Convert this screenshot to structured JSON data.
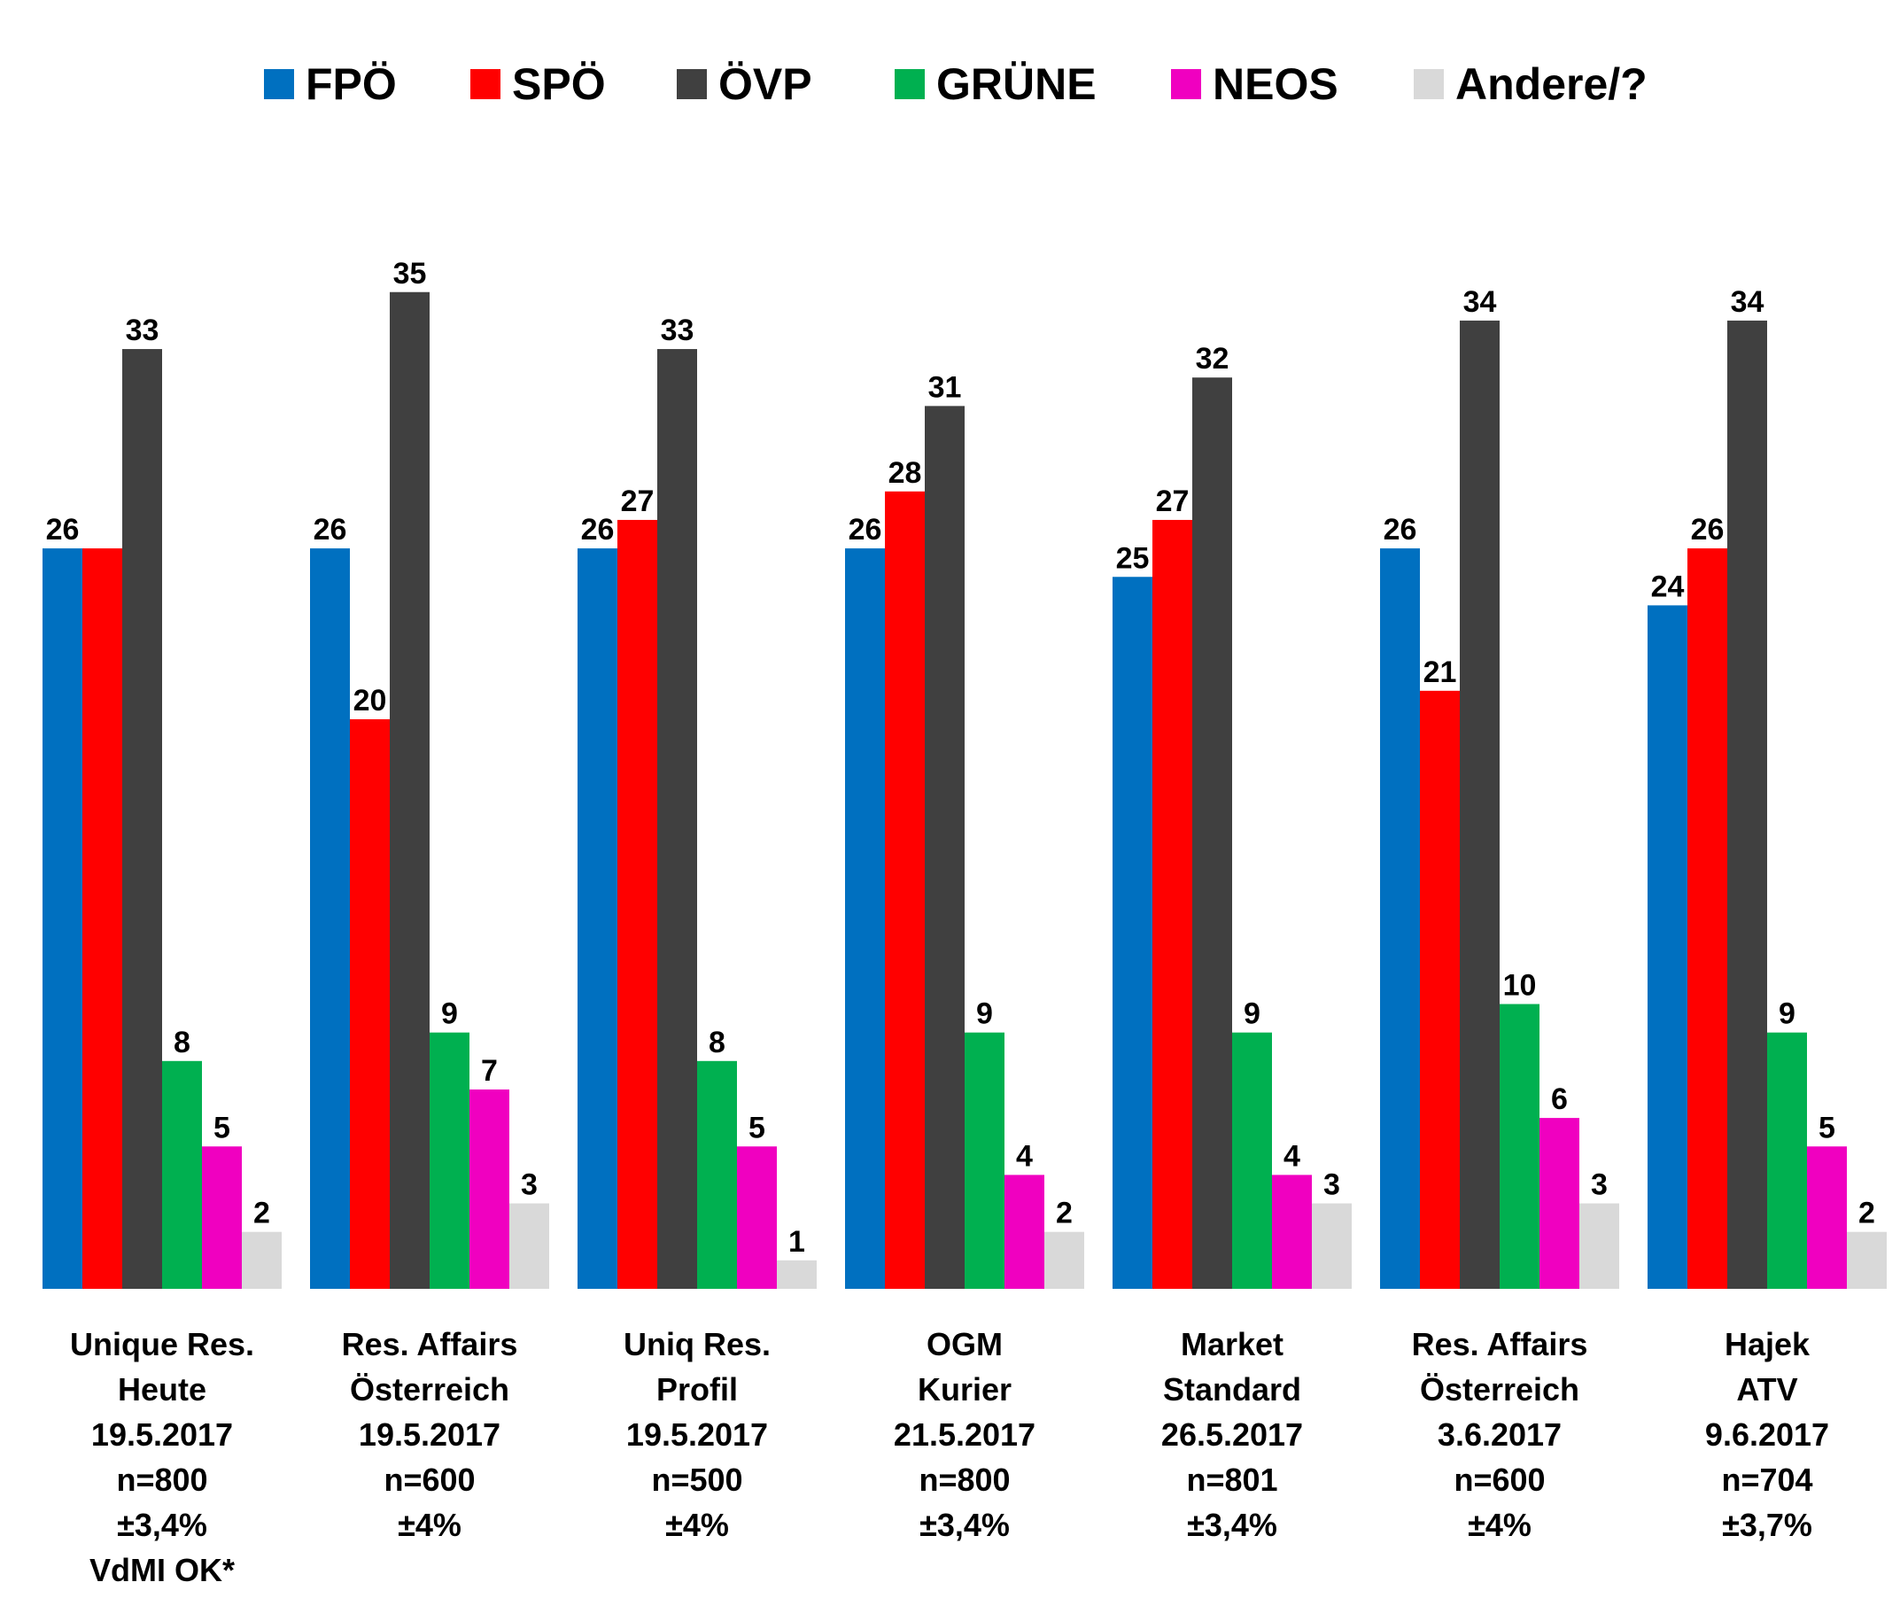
{
  "chart_data": {
    "type": "bar",
    "title": "",
    "xlabel": "",
    "ylabel": "",
    "ylim": [
      0,
      36
    ],
    "grid": false,
    "legend_position": "top",
    "series": [
      {
        "name": "FPÖ",
        "color": "#0070C0",
        "values": [
          26,
          26,
          26,
          26,
          25,
          26,
          24
        ]
      },
      {
        "name": "SPÖ",
        "color": "#FF0000",
        "values": [
          26,
          20,
          27,
          28,
          27,
          21,
          26
        ]
      },
      {
        "name": "ÖVP",
        "color": "#404040",
        "values": [
          33,
          35,
          33,
          31,
          32,
          34,
          34
        ]
      },
      {
        "name": "GRÜNE",
        "color": "#00B050",
        "values": [
          8,
          9,
          8,
          9,
          9,
          10,
          9
        ]
      },
      {
        "name": "NEOS",
        "color": "#F000C0",
        "values": [
          5,
          7,
          5,
          4,
          4,
          6,
          5
        ]
      },
      {
        "name": "Andere/?",
        "color": "#D9D9D9",
        "values": [
          2,
          3,
          1,
          2,
          3,
          3,
          2
        ]
      }
    ],
    "data_labels": [
      [
        "26",
        "",
        "33",
        "8",
        "5",
        "2"
      ],
      [
        "26",
        "20",
        "35",
        "9",
        "7",
        "3"
      ],
      [
        "26",
        "27",
        "33",
        "8",
        "5",
        "1"
      ],
      [
        "26",
        "28",
        "31",
        "9",
        "4",
        "2"
      ],
      [
        "25",
        "27",
        "32",
        "9",
        "4",
        "3"
      ],
      [
        "26",
        "21",
        "34",
        "10",
        "6",
        "3"
      ],
      [
        "24",
        "26",
        "34",
        "9",
        "5",
        "2"
      ]
    ],
    "categories": [
      [
        "Unique Res.",
        "Heute",
        "19.5.2017",
        "n=800",
        "±3,4%",
        "VdMI OK*"
      ],
      [
        "Res. Affairs",
        "Österreich",
        "19.5.2017",
        "n=600",
        "±4%"
      ],
      [
        "Uniq Res.",
        "Profil",
        "19.5.2017",
        "n=500",
        "±4%"
      ],
      [
        "OGM",
        "Kurier",
        "21.5.2017",
        "n=800",
        "±3,4%"
      ],
      [
        "Market",
        "Standard",
        "26.5.2017",
        "n=801",
        "±3,4%"
      ],
      [
        "Res. Affairs",
        "Österreich",
        "3.6.2017",
        "n=600",
        "±4%"
      ],
      [
        "Hajek",
        "ATV",
        "9.6.2017",
        "n=704",
        "±3,7%"
      ]
    ]
  }
}
